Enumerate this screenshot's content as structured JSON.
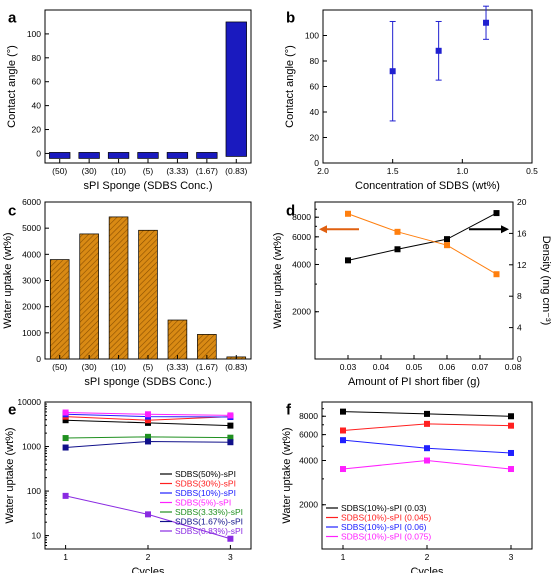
{
  "chart_data": [
    {
      "panel": "a",
      "type": "bar",
      "title": "",
      "xlabel": "sPI Sponge (SDBS Conc.)",
      "ylabel": "Contact angle (°)",
      "categories": [
        "(50)",
        "(30)",
        "(10)",
        "(5)",
        "(3.33)",
        "(1.67)",
        "(0.83)"
      ],
      "values": [
        0,
        0,
        0,
        0,
        0,
        0,
        110
      ],
      "ylim": [
        -8,
        120
      ],
      "yticks": [
        0,
        20,
        40,
        60,
        80,
        100
      ],
      "color": "#1a1abf",
      "grid": false,
      "legend": "none"
    },
    {
      "panel": "b",
      "type": "scatter",
      "title": "",
      "xlabel": "Concentration of SDBS (wt%)",
      "ylabel": "Contact angle (°)",
      "xlim": [
        2.0,
        0.5
      ],
      "xticks": [
        2.0,
        1.5,
        1.0,
        0.5
      ],
      "xtick_labels": [
        "2.0",
        "1.5",
        "1.0",
        "0.5"
      ],
      "ylim": [
        0,
        120
      ],
      "yticks": [
        0,
        20,
        40,
        60,
        80,
        100
      ],
      "x": [
        1.5,
        1.17,
        0.83
      ],
      "y": [
        72,
        88,
        110
      ],
      "yerr": [
        39,
        23,
        13
      ],
      "color": "#2020d0",
      "grid": false,
      "legend": "none"
    },
    {
      "panel": "c",
      "type": "bar",
      "title": "",
      "xlabel": "sPI sponge (SDBS Conc.)",
      "ylabel": "Water uptake (wt%)",
      "categories": [
        "(50)",
        "(30)",
        "(10)",
        "(5)",
        "(3.33)",
        "(1.67)",
        "(0.83)"
      ],
      "values": [
        3800,
        4780,
        5430,
        4920,
        1490,
        940,
        80
      ],
      "ylim": [
        0,
        6000
      ],
      "yticks": [
        0,
        1000,
        2000,
        3000,
        4000,
        5000,
        6000
      ],
      "color": "#d98a14",
      "hatch": true,
      "grid": false,
      "legend": "none"
    },
    {
      "panel": "d",
      "type": "line",
      "title": "",
      "xlabel": "Amount of PI short fiber (g)",
      "ylabel": "Water uptake (wt%)",
      "ylabel_right": "Density (mg cm⁻³)",
      "xlim": [
        0.02,
        0.08
      ],
      "xticks": [
        0.03,
        0.04,
        0.05,
        0.06,
        0.07,
        0.08
      ],
      "y_scale": "log",
      "ylim": [
        1000,
        10000
      ],
      "yticks_labeled": [
        2000,
        4000,
        6000,
        8000
      ],
      "ylim_right": [
        0,
        20
      ],
      "yticks_right": [
        0,
        4,
        8,
        12,
        16,
        20
      ],
      "series": [
        {
          "axis": "left",
          "color": "#000000",
          "marker": "square",
          "x": [
            0.03,
            0.045,
            0.06,
            0.075
          ],
          "values": [
            4250,
            5000,
            5800,
            8500
          ]
        },
        {
          "axis": "right",
          "color": "#ff7f0e",
          "marker": "square",
          "x": [
            0.03,
            0.045,
            0.06,
            0.075
          ],
          "values": [
            18.5,
            16.2,
            14.5,
            10.8
          ]
        }
      ],
      "grid": false,
      "legend": "none"
    },
    {
      "panel": "e",
      "type": "line",
      "title": "",
      "xlabel": "Cycles",
      "ylabel": "Water uptake (wt%)",
      "x": [
        1,
        2,
        3
      ],
      "xlim": [
        0.75,
        3.25
      ],
      "y_scale": "log",
      "ylim": [
        5,
        10000
      ],
      "yticks": [
        10,
        100,
        1000,
        10000
      ],
      "series": [
        {
          "name": "SDBS(50%)-sPI",
          "color": "#000000",
          "values": [
            3900,
            3400,
            2950
          ]
        },
        {
          "name": "SDBS(30%)-sPI",
          "color": "#ff2020",
          "values": [
            4700,
            3900,
            4700
          ]
        },
        {
          "name": "SDBS(10%)-sPI",
          "color": "#2020ff",
          "values": [
            5300,
            4700,
            4600
          ]
        },
        {
          "name": "SDBS(5%)-sPI",
          "color": "#ff20ff",
          "values": [
            5800,
            5300,
            5000
          ]
        },
        {
          "name": "SDBS(3.33%)-sPI",
          "color": "#209020",
          "values": [
            1550,
            1650,
            1580
          ]
        },
        {
          "name": "SDBS(1.67%)-sPI",
          "color": "#10108a",
          "values": [
            950,
            1300,
            1250
          ]
        },
        {
          "name": "SDBS(0.83%)-sPI",
          "color": "#8a2be2",
          "values": [
            78,
            30,
            8.5
          ]
        }
      ],
      "grid": false,
      "legend": "center-right"
    },
    {
      "panel": "f",
      "type": "line",
      "title": "",
      "xlabel": "Cycles",
      "ylabel": "Water uptake (wt%)",
      "x": [
        1,
        2,
        3
      ],
      "xlim": [
        0.75,
        3.25
      ],
      "y_scale": "log",
      "ylim": [
        1000,
        10000
      ],
      "yticks_labeled": [
        2000,
        4000,
        6000,
        8000
      ],
      "series": [
        {
          "name": "SDBS(10%)-sPI (0.03)",
          "color": "#000000",
          "values": [
            8600,
            8300,
            8000
          ]
        },
        {
          "name": "SDBS(10%)-sPI (0.045)",
          "color": "#ff2020",
          "values": [
            6400,
            7100,
            6900
          ]
        },
        {
          "name": "SDBS(10%)-sPI (0.06)",
          "color": "#2020ff",
          "values": [
            5500,
            4850,
            4500
          ]
        },
        {
          "name": "SDBS(10%)-sPI (0.075)",
          "color": "#ff20ff",
          "values": [
            3500,
            4000,
            3500
          ]
        }
      ],
      "grid": false,
      "legend": "bottom-left"
    }
  ],
  "panel_labels": [
    "a",
    "b",
    "c",
    "d",
    "e",
    "f"
  ]
}
